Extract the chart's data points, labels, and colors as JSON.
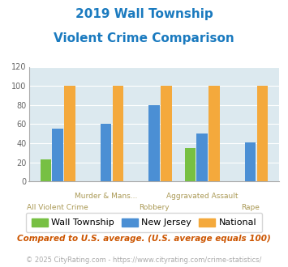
{
  "title_line1": "2019 Wall Township",
  "title_line2": "Violent Crime Comparison",
  "title_color": "#1a7abf",
  "categories": [
    "All Violent Crime",
    "Murder & Mans...",
    "Robbery",
    "Aggravated Assault",
    "Rape"
  ],
  "wall_values": [
    23,
    0,
    0,
    35,
    0
  ],
  "nj_values": [
    55,
    60,
    80,
    50,
    41
  ],
  "national_values": [
    100,
    100,
    100,
    100,
    100
  ],
  "wall_color": "#77c043",
  "nj_color": "#4b8fd4",
  "national_color": "#f4a93c",
  "ylim": [
    0,
    120
  ],
  "yticks": [
    0,
    20,
    40,
    60,
    80,
    100,
    120
  ],
  "fig_bg": "#ffffff",
  "plot_bg": "#dce9ef",
  "legend_labels": [
    "Wall Township",
    "New Jersey",
    "National"
  ],
  "footnote1": "Compared to U.S. average. (U.S. average equals 100)",
  "footnote2": "© 2025 CityRating.com - https://www.cityrating.com/crime-statistics/",
  "footnote1_color": "#cc5500",
  "footnote2_color": "#aaaaaa",
  "footnote2_link_color": "#4488cc",
  "xlabels_top": [
    "",
    "Murder & Mans...",
    "",
    "Aggravated Assault",
    ""
  ],
  "xlabels_bot": [
    "All Violent Crime",
    "",
    "Robbery",
    "",
    "Rape"
  ],
  "xlabel_color_top": "#aa9955",
  "xlabel_color_bot": "#aa9955"
}
